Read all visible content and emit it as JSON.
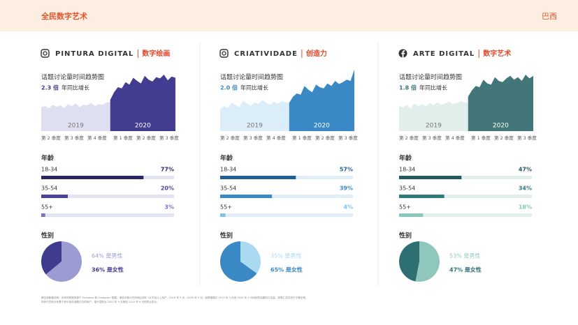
{
  "header": {
    "title": "全民数字艺术",
    "region": "巴西"
  },
  "panels": [
    {
      "icon": "instagram",
      "platform": "PINTURA DIGITAL",
      "tag": "数字绘画",
      "color": "#3f3b8f",
      "trend": {
        "type": "area",
        "title": "话题讨论量时间趋势图",
        "growth": "2.3 倍",
        "growth_label": "年同比增长",
        "quarters": [
          "第 2 季度",
          "第 3 季度",
          "第 4 季度",
          "第 1 季度",
          "第 2 季度",
          "第 3 季度"
        ],
        "series": [
          {
            "name": "2019",
            "color": "#dedff0",
            "values": [
              38,
              40,
              36,
              42,
              39,
              41,
              37,
              43,
              40,
              44,
              38,
              42,
              41,
              45,
              40,
              43,
              42,
              46
            ]
          },
          {
            "name": "2020",
            "color": "#433d92",
            "values": [
              50,
              62,
              70,
              68,
              78,
              74,
              85,
              80,
              76,
              88,
              82,
              79,
              86,
              84,
              90,
              81,
              87,
              85
            ]
          }
        ]
      },
      "age": {
        "title": "年龄",
        "rows": [
          {
            "label": "18-34",
            "value": 77,
            "value_label": "77%",
            "color": "#2b2767"
          },
          {
            "label": "35-54",
            "value": 20,
            "value_label": "20%",
            "color": "#4a449e"
          },
          {
            "label": "55+",
            "value": 3,
            "value_label": "3%",
            "color": "#7773bd"
          }
        ],
        "track": "#e3e4f2"
      },
      "gender": {
        "title": "性别",
        "items": [
          {
            "value": 64,
            "label": "64% 是男性",
            "color": "#9c9bd2"
          },
          {
            "value": 36,
            "label": "36% 是女性",
            "color": "#3f3b8f"
          }
        ]
      }
    },
    {
      "icon": "instagram",
      "platform": "CRIATIVIDADE",
      "tag": "创造力",
      "color": "#3a88c4",
      "trend": {
        "type": "area",
        "title": "话题讨论量时间趋势图",
        "growth": "2.0 倍",
        "growth_label": "年同比增长",
        "quarters": [
          "第 2 季度",
          "第 3 季度",
          "第 4 季度",
          "第 1 季度",
          "第 2 季度",
          "第 3 季度"
        ],
        "series": [
          {
            "name": "2019",
            "color": "#dbedf8",
            "values": [
              35,
              40,
              37,
              45,
              42,
              38,
              48,
              44,
              40,
              46,
              43,
              50,
              45,
              42,
              47,
              44,
              48,
              46
            ]
          },
          {
            "name": "2020",
            "color": "#3a88c4",
            "values": [
              45,
              55,
              60,
              58,
              72,
              66,
              62,
              74,
              70,
              68,
              76,
              72,
              80,
              75,
              78,
              82,
              80,
              98
            ]
          }
        ]
      },
      "age": {
        "title": "年龄",
        "rows": [
          {
            "label": "18-34",
            "value": 57,
            "value_label": "57%",
            "color": "#1f5f96"
          },
          {
            "label": "35-54",
            "value": 39,
            "value_label": "39%",
            "color": "#3a88c4"
          },
          {
            "label": "55+",
            "value": 4,
            "value_label": "4%",
            "color": "#7cc3e8"
          }
        ],
        "track": "#e2eff8"
      },
      "gender": {
        "title": "性别",
        "items": [
          {
            "value": 35,
            "label": "35% 是男性",
            "color": "#a9daf2"
          },
          {
            "value": 65,
            "label": "65% 是女性",
            "color": "#3a88c4"
          }
        ]
      }
    },
    {
      "icon": "facebook",
      "platform": "ARTE DIGITAL",
      "tag": "数字艺术",
      "color": "#3e7376",
      "trend": {
        "type": "area",
        "title": "话题讨论量时间趋势图",
        "growth": "1.8 倍",
        "growth_label": "年同比增长",
        "quarters": [
          "第 2 季度",
          "第 3 季度",
          "第 4 季度",
          "第 1 季度",
          "第 2 季度",
          "第 3 季度"
        ],
        "series": [
          {
            "name": "2019",
            "color": "#e2eeeb",
            "values": [
              40,
              38,
              42,
              36,
              44,
              40,
              43,
              39,
              45,
              41,
              46,
              42,
              44,
              47,
              43,
              45,
              48,
              46
            ]
          },
          {
            "name": "2020",
            "color": "#437678",
            "values": [
              55,
              65,
              72,
              70,
              82,
              76,
              74,
              86,
              80,
              78,
              84,
              88,
              82,
              86,
              80,
              90,
              84,
              88
            ]
          }
        ]
      },
      "age": {
        "title": "年龄",
        "rows": [
          {
            "label": "18-34",
            "value": 47,
            "value_label": "47%",
            "color": "#235a5c"
          },
          {
            "label": "35-54",
            "value": 34,
            "value_label": "34%",
            "color": "#2f7a78"
          },
          {
            "label": "55+",
            "value": 18,
            "value_label": "18%",
            "color": "#86c8bb"
          }
        ],
        "track": "#e3efec"
      },
      "gender": {
        "title": "性别",
        "items": [
          {
            "value": 53,
            "label": "53% 是男性",
            "color": "#8fc7bd"
          },
          {
            "value": 47,
            "label": "47% 是女性",
            "color": "#2e6f72"
          }
        ]
      }
    }
  ],
  "footer": [
    "脚注和数据说明：本研究数据来源于 Facebook 和 Instagram 数据。调查对象为巴西地区成年 18 岁及以上用户，2019 年 9 月 - 2020 年 9 月。趋势图展示 2019 年 9 月到 2020 年 9 月间相关话题的讨论量，按周汇总并进行平滑处理。",
    "年龄与性别分布基于参与相关话题讨论的用户。增长倍数为 2020 年 9 月相较 2019 年 9 月的同比变化。"
  ]
}
